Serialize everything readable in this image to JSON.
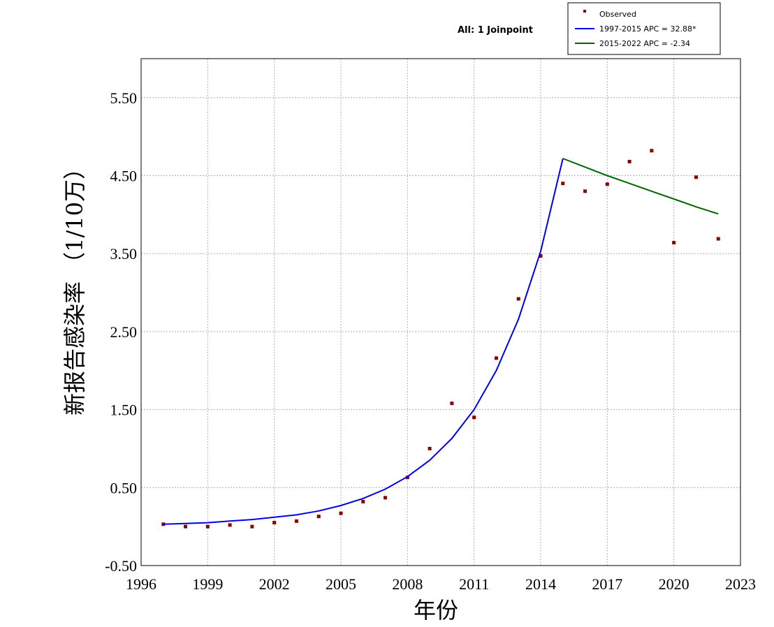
{
  "chart_data": {
    "type": "line",
    "title": "All: 1 Joinpoint",
    "xlabel": "年份",
    "ylabel": "新报告感染率 （1/10万）",
    "xlim": [
      1996,
      2023
    ],
    "ylim": [
      -0.5,
      6.0
    ],
    "x_ticks": [
      "1996",
      "1999",
      "2002",
      "2005",
      "2008",
      "2011",
      "2014",
      "2017",
      "2020",
      "2023"
    ],
    "y_ticks": [
      "-0.50",
      "0.50",
      "1.50",
      "2.50",
      "3.50",
      "4.50",
      "5.50"
    ],
    "grid": true,
    "legend_position": "top-right",
    "series": [
      {
        "name": "Observed",
        "kind": "scatter",
        "color": "#8b0000",
        "x": [
          1997,
          1998,
          1999,
          2000,
          2001,
          2002,
          2003,
          2004,
          2005,
          2006,
          2007,
          2008,
          2009,
          2010,
          2011,
          2012,
          2013,
          2014,
          2015,
          2016,
          2017,
          2018,
          2019,
          2020,
          2021,
          2022
        ],
        "values": [
          0.03,
          0.0,
          0.0,
          0.02,
          0.0,
          0.05,
          0.07,
          0.13,
          0.17,
          0.32,
          0.37,
          0.63,
          1.0,
          1.58,
          1.4,
          2.16,
          2.92,
          3.47,
          4.4,
          4.3,
          4.39,
          4.68,
          4.82,
          3.64,
          4.48,
          3.69
        ]
      },
      {
        "name": "1997-2015 APC  = 32.88*",
        "kind": "line",
        "color": "#0000ee",
        "x": [
          1997,
          1998,
          1999,
          2000,
          2001,
          2002,
          2003,
          2004,
          2005,
          2006,
          2007,
          2008,
          2009,
          2010,
          2011,
          2012,
          2013,
          2014,
          2015
        ],
        "values": [
          0.03,
          0.04,
          0.05,
          0.07,
          0.09,
          0.12,
          0.15,
          0.2,
          0.27,
          0.36,
          0.48,
          0.64,
          0.85,
          1.13,
          1.5,
          2.0,
          2.66,
          3.53,
          4.72
        ]
      },
      {
        "name": "2015-2022 APC  = -2.34",
        "kind": "line",
        "color": "#006400",
        "x": [
          2015,
          2016,
          2017,
          2018,
          2019,
          2020,
          2021,
          2022
        ],
        "values": [
          4.72,
          4.61,
          4.5,
          4.4,
          4.3,
          4.2,
          4.1,
          4.01
        ]
      }
    ]
  }
}
